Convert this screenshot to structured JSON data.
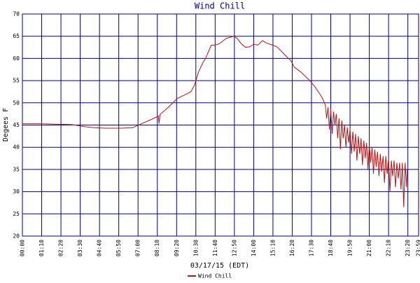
{
  "chart_data": {
    "type": "line",
    "title": "Wind Chill",
    "xlabel": "03/17/15 (EDT)",
    "ylabel": "Degees F",
    "xlim": [
      0,
      1439
    ],
    "ylim": [
      20,
      70
    ],
    "yticks": [
      20,
      25,
      30,
      35,
      40,
      45,
      50,
      55,
      60,
      65,
      70
    ],
    "xticks": [
      {
        "value": 0,
        "label": "00:00"
      },
      {
        "value": 70,
        "label": "01:10"
      },
      {
        "value": 140,
        "label": "02:20"
      },
      {
        "value": 210,
        "label": "03:30"
      },
      {
        "value": 280,
        "label": "04:40"
      },
      {
        "value": 350,
        "label": "05:50"
      },
      {
        "value": 420,
        "label": "07:00"
      },
      {
        "value": 490,
        "label": "08:10"
      },
      {
        "value": 560,
        "label": "09:20"
      },
      {
        "value": 630,
        "label": "10:30"
      },
      {
        "value": 700,
        "label": "11:40"
      },
      {
        "value": 770,
        "label": "12:50"
      },
      {
        "value": 840,
        "label": "14:00"
      },
      {
        "value": 910,
        "label": "15:10"
      },
      {
        "value": 980,
        "label": "16:20"
      },
      {
        "value": 1050,
        "label": "17:30"
      },
      {
        "value": 1120,
        "label": "18:40"
      },
      {
        "value": 1190,
        "label": "19:50"
      },
      {
        "value": 1260,
        "label": "21:00"
      },
      {
        "value": 1330,
        "label": "22:10"
      },
      {
        "value": 1400,
        "label": "23:20"
      },
      {
        "value": 1439,
        "label": "23:59"
      }
    ],
    "grid": true,
    "legend": "bottom",
    "x": [
      0,
      60,
      120,
      180,
      200,
      230,
      260,
      300,
      360,
      400,
      415,
      440,
      470,
      494,
      496,
      500,
      530,
      563,
      590,
      612,
      625,
      640,
      655,
      665,
      686,
      700,
      715,
      740,
      768,
      780,
      795,
      810,
      825,
      840,
      855,
      872,
      885,
      908,
      925,
      958,
      975,
      988,
      1010,
      1044,
      1060,
      1080,
      1090,
      1100,
      1105,
      1110,
      1115,
      1120,
      1125,
      1130,
      1135,
      1140,
      1145,
      1150,
      1155,
      1160,
      1165,
      1170,
      1175,
      1180,
      1185,
      1190,
      1195,
      1200,
      1205,
      1210,
      1215,
      1220,
      1225,
      1230,
      1235,
      1240,
      1245,
      1250,
      1255,
      1260,
      1265,
      1270,
      1275,
      1280,
      1285,
      1290,
      1295,
      1300,
      1305,
      1310,
      1315,
      1320,
      1325,
      1330,
      1335,
      1340,
      1345,
      1350,
      1355,
      1360,
      1365,
      1370,
      1375,
      1380,
      1385,
      1390,
      1395,
      1398
    ],
    "series": [
      {
        "name": "Wind Chill",
        "color": "#b01818",
        "values": [
          45.3,
          45.3,
          45.2,
          45.1,
          44.9,
          44.6,
          44.4,
          44.3,
          44.3,
          44.4,
          44.8,
          45.5,
          46.3,
          47.0,
          45.3,
          47.4,
          49.0,
          51.0,
          51.8,
          52.5,
          54.0,
          57.0,
          59.0,
          60.0,
          63.0,
          63.0,
          63.3,
          64.5,
          65.0,
          64.5,
          63.3,
          62.5,
          62.6,
          63.2,
          63.0,
          64.0,
          63.5,
          63.0,
          62.6,
          60.5,
          59.5,
          58.0,
          57.0,
          55.0,
          53.8,
          52.0,
          51.0,
          49.5,
          46.5,
          49,
          44,
          48.5,
          43,
          48,
          45,
          47.5,
          42,
          46.5,
          39.5,
          46,
          42,
          45,
          40,
          44.5,
          41,
          44,
          38.5,
          43.5,
          39,
          43,
          37,
          42.5,
          38.5,
          42,
          36,
          41.5,
          37.5,
          41,
          35,
          40.5,
          36.5,
          40,
          34,
          39.5,
          35.5,
          39,
          33.5,
          38.5,
          34.5,
          38,
          32,
          38,
          34,
          37.5,
          30,
          37,
          33.5,
          37,
          31,
          36.5,
          33,
          36.5,
          30.5,
          36.5,
          26.5,
          36.5,
          31,
          35
        ]
      }
    ]
  }
}
